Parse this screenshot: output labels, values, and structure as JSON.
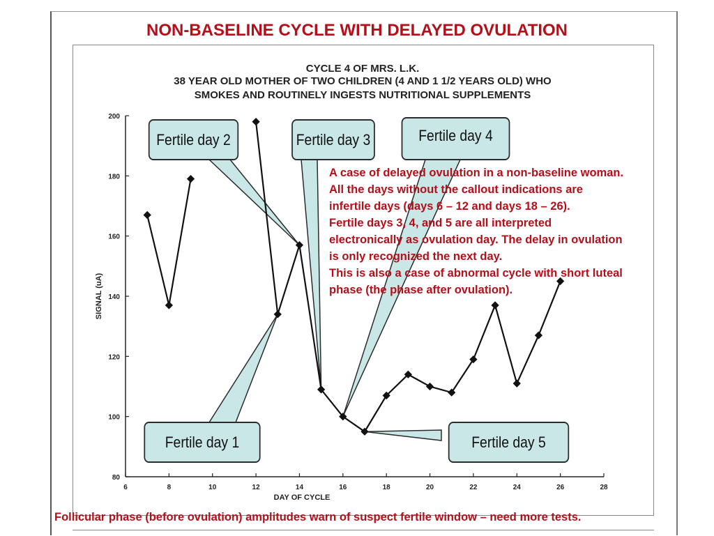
{
  "title": "NON-BASELINE CYCLE WITH DELAYED OVULATION",
  "subtitle": {
    "line1": "CYCLE 4 OF MRS. L.K.",
    "line2": "38 YEAR OLD MOTHER OF TWO CHILDREN (4 AND 1 1/2 YEARS OLD) WHO",
    "line3": "SMOKES AND ROUTINELY INGESTS NUTRITIONAL SUPPLEMENTS"
  },
  "callouts": {
    "fertile_day_1": "Fertile day 1",
    "fertile_day_2": "Fertile day 2",
    "fertile_day_3": "Fertile day 3",
    "fertile_day_4": "Fertile day 4",
    "fertile_day_5": "Fertile day 5"
  },
  "note": {
    "line1": "A case of delayed ovulation in a non-baseline woman.",
    "line2": "All the days without the callout indications are",
    "line3": "infertile days (days 6 – 12 and days 18 – 26).",
    "line4": "Fertile days 3, 4, and 5 are all interpreted",
    "line5": "electronically as ovulation day. The delay in ovulation",
    "line6": "is only recognized the next day.",
    "line7": "This is also a case of abnormal cycle with short luteal",
    "line8": "phase (the phase after ovulation)."
  },
  "footer": "Follicular phase (before ovulation) amplitudes warn of suspect fertile window – need more tests.",
  "colors": {
    "title_red": "#b50f1a",
    "callout_fill": "#c9e7e7",
    "line": "#111111"
  },
  "chart_data": {
    "type": "line",
    "xlabel": "DAY OF CYCLE",
    "ylabel": "SIGNAL (uA)",
    "xlim": [
      6,
      28
    ],
    "ylim": [
      80,
      200
    ],
    "xticks": [
      6,
      8,
      10,
      12,
      14,
      16,
      18,
      20,
      22,
      24,
      26,
      28
    ],
    "yticks": [
      80,
      100,
      120,
      140,
      160,
      180,
      200
    ],
    "grid": false,
    "segments": [
      {
        "x": [
          7,
          8,
          9
        ],
        "y": [
          167,
          137,
          179
        ]
      },
      {
        "x": [
          12,
          13,
          14,
          15,
          16,
          17,
          18,
          19,
          20,
          21,
          22,
          23,
          24,
          25,
          26
        ],
        "y": [
          198,
          134,
          157,
          109,
          100,
          95,
          107,
          114,
          110,
          108,
          119,
          137,
          111,
          127,
          145
        ]
      }
    ],
    "fertile_days": [
      13,
      14,
      15,
      16,
      17
    ]
  }
}
